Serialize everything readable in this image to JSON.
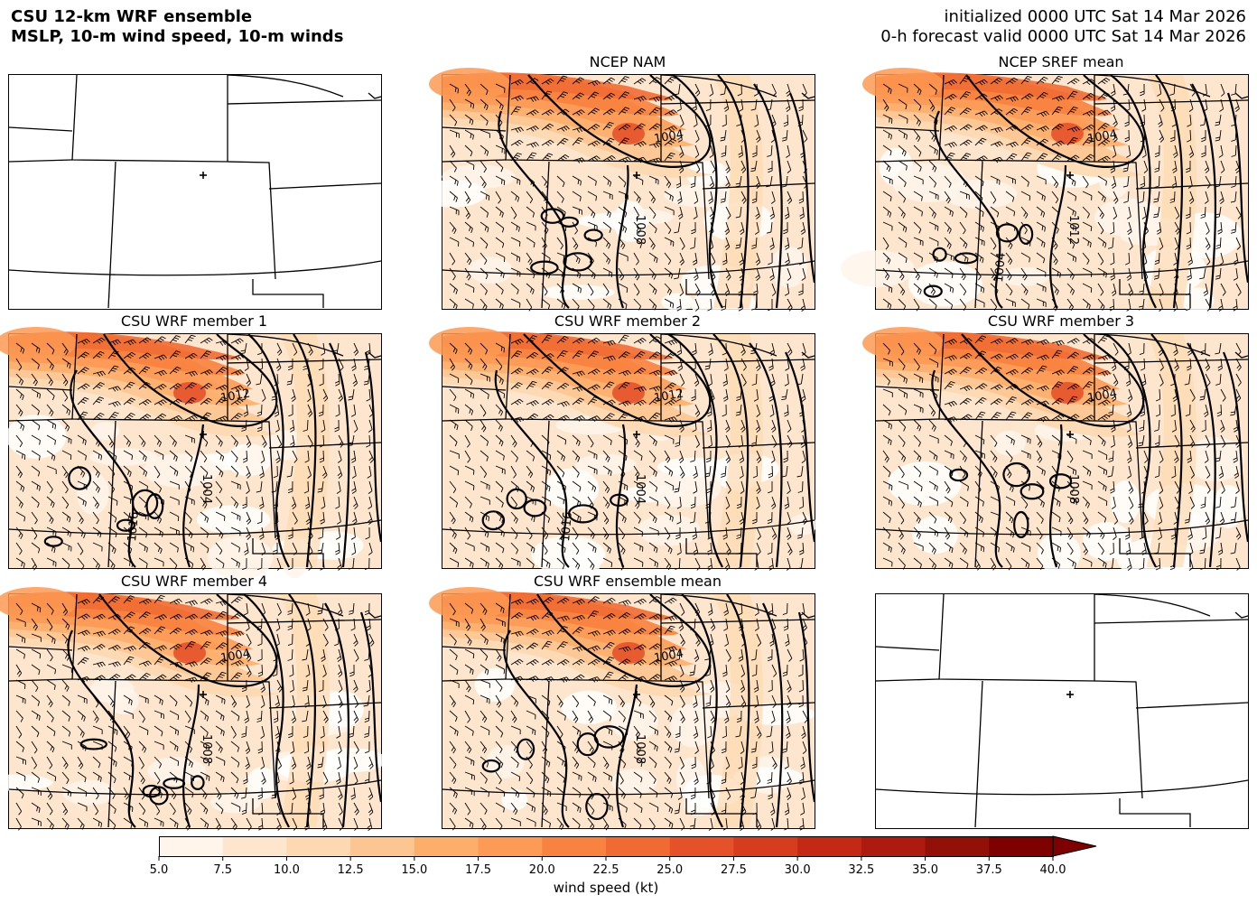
{
  "title": {
    "line1": "CSU 12-km WRF ensemble",
    "line2": "MSLP, 10-m wind speed, 10-m winds"
  },
  "valid": {
    "line1": "initialized 0000 UTC Sat 14 Mar 2026",
    "line2": "0-h forecast valid 0000 UTC Sat 14 Mar 2026"
  },
  "panels": [
    {
      "title": "",
      "filled": false
    },
    {
      "title": "NCEP NAM",
      "filled": true,
      "contour_labels": [
        "1004",
        "1008"
      ]
    },
    {
      "title": "NCEP SREF mean",
      "filled": true,
      "contour_labels": [
        "1004",
        "1012",
        "1004"
      ]
    },
    {
      "title": "CSU WRF member 1",
      "filled": true,
      "contour_labels": [
        "1012",
        "1004",
        "1016"
      ]
    },
    {
      "title": "CSU WRF member 2",
      "filled": true,
      "contour_labels": [
        "1012",
        "1004",
        "1016"
      ]
    },
    {
      "title": "CSU WRF member 3",
      "filled": true,
      "contour_labels": [
        "1004",
        "1008"
      ]
    },
    {
      "title": "CSU WRF member 4",
      "filled": true,
      "contour_labels": [
        "1004",
        "1008"
      ]
    },
    {
      "title": "CSU WRF ensemble mean",
      "filled": true,
      "contour_labels": [
        "1004",
        "1008"
      ]
    },
    {
      "title": "",
      "filled": false
    }
  ],
  "colorbar": {
    "label": "wind speed (kt)",
    "ticks": [
      "5.0",
      "7.5",
      "10.0",
      "12.5",
      "15.0",
      "17.5",
      "20.0",
      "22.5",
      "25.0",
      "27.5",
      "30.0",
      "32.5",
      "35.0",
      "37.5",
      "40.0"
    ],
    "colors": [
      "#fff5eb",
      "#fee6ce",
      "#fdd8b0",
      "#fdc591",
      "#fdae6b",
      "#fd9a55",
      "#f8823f",
      "#f06b33",
      "#e5522a",
      "#d63c1e",
      "#c42916",
      "#ad1a0f",
      "#921007",
      "#7f0000"
    ]
  }
}
